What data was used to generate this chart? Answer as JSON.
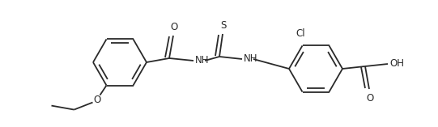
{
  "bg_color": "#ffffff",
  "line_color": "#2a2a2a",
  "line_width": 1.3,
  "font_size": 8.5,
  "figsize": [
    5.41,
    1.57
  ],
  "dpi": 100,
  "xlim": [
    0,
    541
  ],
  "ylim": [
    0,
    157
  ],
  "ring_r": 33,
  "r1cx": 148,
  "r1cy": 80,
  "r2cx": 390,
  "r2cy": 72
}
